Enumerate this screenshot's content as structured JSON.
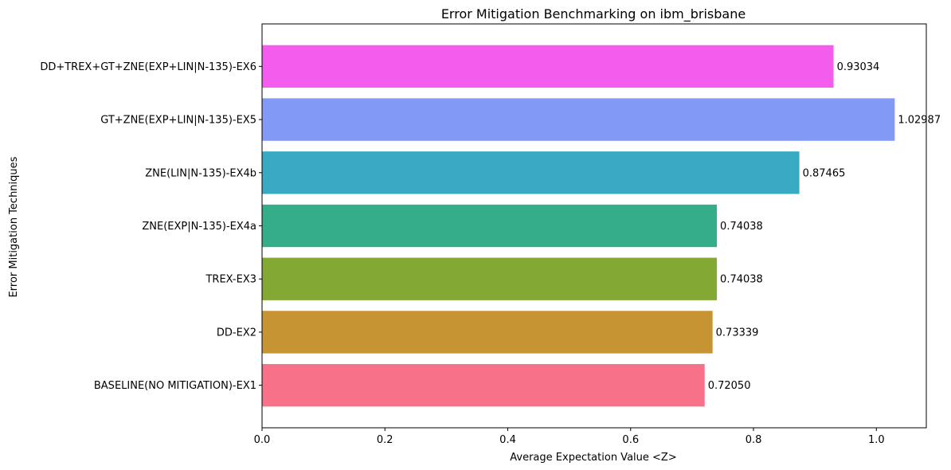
{
  "chart_data": {
    "type": "bar",
    "orientation": "horizontal",
    "title": "Error Mitigation Benchmarking on ibm_brisbane",
    "xlabel": "Average Expectation Value <Z>",
    "ylabel": "Error Mitigation Techniques",
    "xlim": [
      0,
      1.0813
    ],
    "xticks": [
      "0.0",
      "0.2",
      "0.4",
      "0.6",
      "0.8",
      "1.0"
    ],
    "grid": false,
    "categories": [
      "BASELINE(NO MITIGATION)-EX1",
      "DD-EX2",
      "TREX-EX3",
      "ZNE(EXP|N-135)-EX4a",
      "ZNE(LIN|N-135)-EX4b",
      "GT+ZNE(EXP+LIN|N-135)-EX5",
      "DD+TREX+GT+ZNE(EXP+LIN|N-135)-EX6"
    ],
    "values": [
      0.7205,
      0.73339,
      0.74038,
      0.74038,
      0.87465,
      1.02987,
      0.93034
    ],
    "value_labels": [
      "0.72050",
      "0.73339",
      "0.74038",
      "0.74038",
      "0.87465",
      "1.02987",
      "0.93034"
    ],
    "colors": [
      "#f77189",
      "#c69432",
      "#84a834",
      "#36ad8a",
      "#3aa9c2",
      "#8299f5",
      "#f45ced"
    ]
  }
}
